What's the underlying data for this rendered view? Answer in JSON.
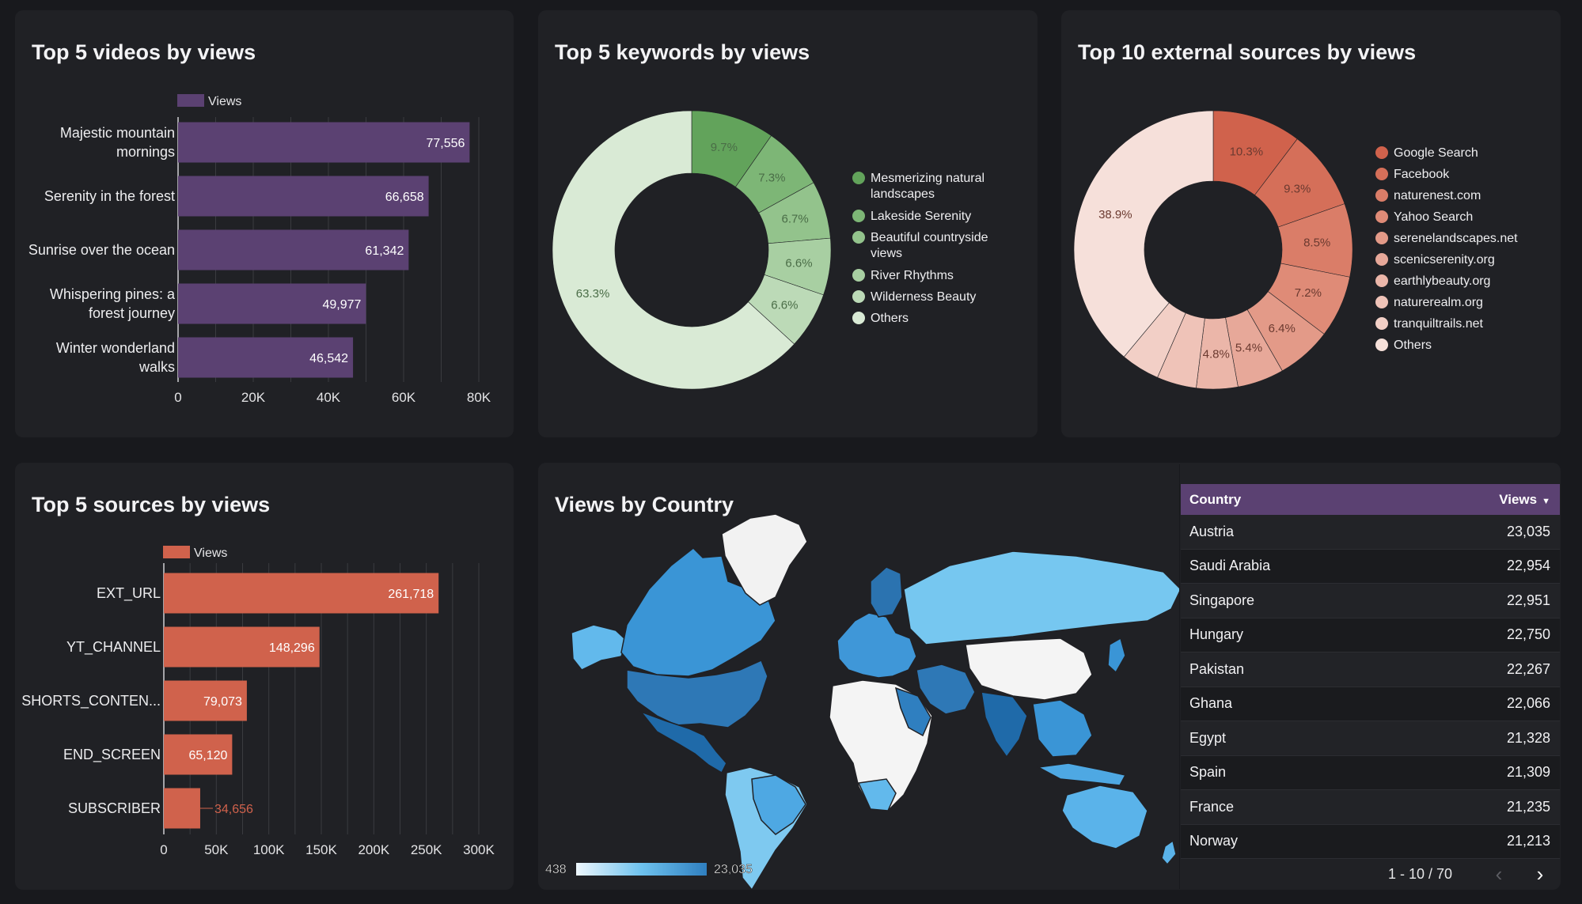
{
  "colors": {
    "background": "#18191d",
    "card": "#202125",
    "purple_bar": "#5b4172",
    "coral_bar": "#d0624c",
    "table_header": "#5b4172",
    "map_low": "#e3f2fb",
    "map_high": "#2f7fc0"
  },
  "videos_chart": {
    "title": "Top 5 videos by views",
    "chart_data": {
      "type": "bar",
      "orientation": "horizontal",
      "categories": [
        [
          "Majestic mountain",
          "mornings"
        ],
        [
          "Serenity in the forest"
        ],
        [
          "Sunrise over the ocean"
        ],
        [
          "Whispering pines: a",
          "forest journey"
        ],
        [
          "Winter wonderland",
          "walks"
        ]
      ],
      "series": [
        {
          "name": "Views",
          "values": [
            77556,
            66658,
            61342,
            49977,
            46542
          ]
        }
      ],
      "value_labels": [
        "77,556",
        "66,658",
        "61,342",
        "49,977",
        "46,542"
      ],
      "xlim": [
        0,
        80000
      ],
      "ticks": [
        0,
        20000,
        40000,
        60000,
        80000
      ],
      "tick_labels": [
        "0",
        "20K",
        "40K",
        "60K",
        "80K"
      ],
      "legend": "top",
      "grid": true,
      "color": "#5b4172"
    }
  },
  "keywords_chart": {
    "title": "Top 5 keywords by views",
    "chart_data": {
      "type": "pie",
      "donut": true,
      "labels": [
        "Mesmerizing natural landscapes",
        "Lakeside Serenity",
        "Beautiful countryside views",
        "River Rhythms",
        "Wilderness Beauty",
        "Others"
      ],
      "legend_lines": [
        [
          "Mesmerizing natural",
          "landscapes"
        ],
        [
          "Lakeside Serenity"
        ],
        [
          "Beautiful countryside",
          "views"
        ],
        [
          "River Rhythms"
        ],
        [
          "Wilderness Beauty"
        ],
        [
          "Others"
        ]
      ],
      "values": [
        9.7,
        7.3,
        6.7,
        6.6,
        6.6,
        63.3
      ],
      "value_labels": [
        "9.7%",
        "7.3%",
        "6.7%",
        "6.6%",
        "6.6%",
        "63.3%"
      ],
      "colors": [
        "#62a35b",
        "#7db676",
        "#93c38c",
        "#a8cfa2",
        "#bcdab7",
        "#d9ead5"
      ],
      "legend": "right"
    }
  },
  "sources_ext_chart": {
    "title": "Top 10 external sources by views",
    "chart_data": {
      "type": "pie",
      "donut": true,
      "labels": [
        "Google Search",
        "Facebook",
        "naturenest.com",
        "Yahoo Search",
        "serenelandscapes.net",
        "scenicserenity.org",
        "earthlybeauty.org",
        "naturerealm.org",
        "tranquiltrails.net",
        "Others"
      ],
      "values": [
        10.3,
        9.3,
        8.5,
        7.2,
        6.4,
        5.4,
        4.8,
        4.6,
        4.5,
        38.9
      ],
      "value_labels": [
        "10.3%",
        "9.3%",
        "8.5%",
        "7.2%",
        "6.4%",
        "5.4%",
        "4.8%",
        "",
        "",
        "38.9%"
      ],
      "colors": [
        "#d0624c",
        "#d56f59",
        "#da7d68",
        "#df8b77",
        "#e39a88",
        "#e7a899",
        "#ebb6a9",
        "#efc3b8",
        "#f2cfc6",
        "#f6e0da"
      ],
      "legend": "right"
    }
  },
  "traffic_chart": {
    "title": "Top 5 sources by views",
    "chart_data": {
      "type": "bar",
      "orientation": "horizontal",
      "categories": [
        [
          "EXT_URL"
        ],
        [
          "YT_CHANNEL"
        ],
        [
          "SHORTS_CONTEN..."
        ],
        [
          "END_SCREEN"
        ],
        [
          "SUBSCRIBER"
        ]
      ],
      "series": [
        {
          "name": "Views",
          "values": [
            261718,
            148296,
            79073,
            65120,
            34656
          ]
        }
      ],
      "value_labels": [
        "261,718",
        "148,296",
        "79,073",
        "65,120",
        "34,656"
      ],
      "xlim": [
        0,
        300000
      ],
      "ticks": [
        0,
        50000,
        100000,
        150000,
        200000,
        250000,
        300000
      ],
      "tick_labels": [
        "0",
        "50K",
        "100K",
        "150K",
        "200K",
        "250K",
        "300K"
      ],
      "legend": "top",
      "grid": true,
      "color": "#d0624c"
    }
  },
  "map": {
    "title": "Views by Country",
    "legend_min": "438",
    "legend_max": "23,035"
  },
  "table": {
    "col_country": "Country",
    "col_views": "Views",
    "sort_icon": "caret-down-icon",
    "rows": [
      {
        "country": "Austria",
        "views": "23,035"
      },
      {
        "country": "Saudi Arabia",
        "views": "22,954"
      },
      {
        "country": "Singapore",
        "views": "22,951"
      },
      {
        "country": "Hungary",
        "views": "22,750"
      },
      {
        "country": "Pakistan",
        "views": "22,267"
      },
      {
        "country": "Ghana",
        "views": "22,066"
      },
      {
        "country": "Egypt",
        "views": "21,328"
      },
      {
        "country": "Spain",
        "views": "21,309"
      },
      {
        "country": "France",
        "views": "21,235"
      },
      {
        "country": "Norway",
        "views": "21,213"
      }
    ],
    "pagination": "1 - 10 / 70",
    "prev_icon": "chevron-left-icon",
    "next_icon": "chevron-right-icon"
  }
}
